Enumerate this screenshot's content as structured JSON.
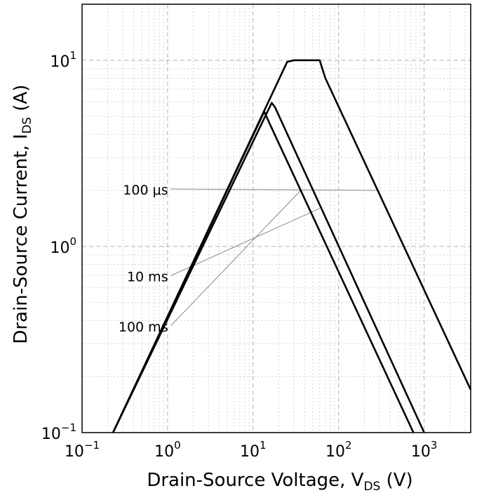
{
  "chart_data": {
    "type": "line",
    "xlabel": {
      "main": "Drain-Source Voltage, V",
      "sub": "DS",
      "unit": " (V)"
    },
    "ylabel": {
      "main": "Drain-Source Current, I",
      "sub": "DS",
      "unit": " (A)"
    },
    "x_scale": "log",
    "y_scale": "log",
    "xlim": [
      0.1,
      3500
    ],
    "ylim": [
      0.1,
      20
    ],
    "grid": true,
    "x_ticks": [
      {
        "base": "10",
        "exp": "−1",
        "value": 0.1
      },
      {
        "base": "10",
        "exp": "0",
        "value": 1
      },
      {
        "base": "10",
        "exp": "1",
        "value": 10
      },
      {
        "base": "10",
        "exp": "2",
        "value": 100
      },
      {
        "base": "10",
        "exp": "3",
        "value": 1000
      }
    ],
    "y_ticks": [
      {
        "base": "10",
        "exp": "−1",
        "value": 0.1
      },
      {
        "base": "10",
        "exp": "0",
        "value": 1
      },
      {
        "base": "10",
        "exp": "1",
        "value": 10
      }
    ],
    "series": [
      {
        "name": "100 μs",
        "points": [
          [
            0.23,
            0.1
          ],
          [
            25,
            9.8
          ],
          [
            30,
            10
          ],
          [
            60,
            10
          ],
          [
            70,
            8
          ],
          [
            3500,
            0.17
          ]
        ],
        "label_at": [
          0.62,
          1.9
        ],
        "leader_to": [
          290,
          2.0
        ]
      },
      {
        "name": "10 ms",
        "points": [
          [
            0.23,
            0.1
          ],
          [
            16.5,
            5.9
          ],
          [
            18,
            5.6
          ],
          [
            1000,
            0.1
          ]
        ],
        "label_at": [
          0.62,
          0.65
        ],
        "leader_to": [
          60,
          1.6
        ]
      },
      {
        "name": "100 ms",
        "points": [
          [
            0.23,
            0.1
          ],
          [
            13.5,
            5.3
          ],
          [
            15.5,
            4.6
          ],
          [
            750,
            0.1
          ]
        ],
        "label_at": [
          0.62,
          0.35
        ],
        "leader_to": [
          36,
          2.0
        ]
      }
    ],
    "annotations": [
      {
        "text": "100 ms",
        "series": "100 ms"
      },
      {
        "text": "10 ms",
        "series": "10 ms"
      },
      {
        "text": "100 μs",
        "series": "100 μs"
      }
    ]
  }
}
